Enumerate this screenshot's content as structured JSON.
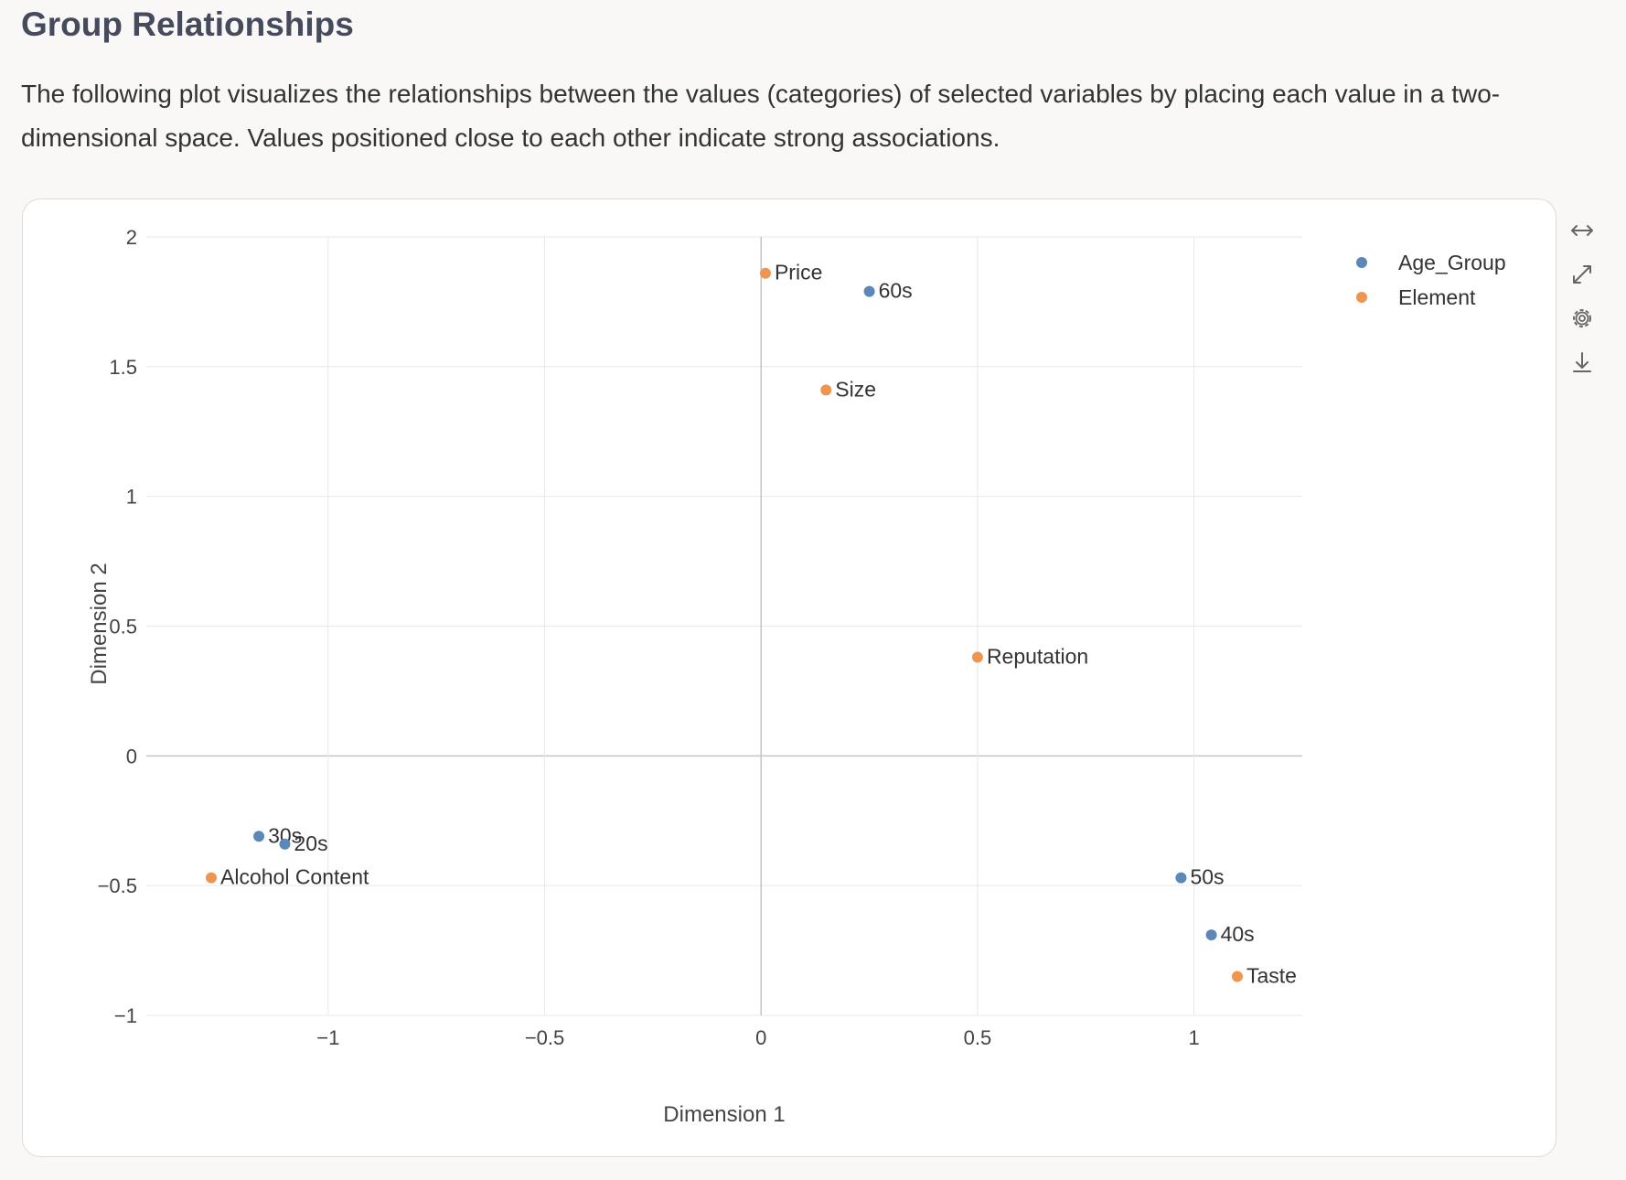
{
  "page": {
    "title": "Group Relationships",
    "description": "The following plot visualizes the relationships between the values (categories) of selected variables by placing each value in a two-dimensional space. Values positioned close to each other indicate strong associations."
  },
  "toolbar": {
    "icons": [
      "resize-horizontal-icon",
      "expand-icon",
      "settings-icon",
      "download-icon"
    ]
  },
  "colors": {
    "Age_Group": "#5b88b8",
    "Element": "#ee9650",
    "grid": "#e8e8e8",
    "zero_line": "#c4c4c4"
  },
  "chart_data": {
    "type": "scatter",
    "title": "",
    "xlabel": "Dimension 1",
    "ylabel": "Dimension 2",
    "xlim": [
      -1.42,
      1.25
    ],
    "ylim": [
      -1.0,
      2.0
    ],
    "xticks": [
      -1,
      -0.5,
      0,
      0.5,
      1
    ],
    "xtick_labels": [
      "−1",
      "−0.5",
      "0",
      "0.5",
      "1"
    ],
    "yticks": [
      -1,
      -0.5,
      0,
      0.5,
      1,
      1.5,
      2
    ],
    "ytick_labels": [
      "−1",
      "−0.5",
      "0",
      "0.5",
      "1",
      "1.5",
      "2"
    ],
    "grid": true,
    "legend_position": "top-right",
    "series": [
      {
        "name": "Age_Group",
        "points": [
          {
            "label": "60s",
            "x": 0.25,
            "y": 1.79
          },
          {
            "label": "30s",
            "x": -1.16,
            "y": -0.31
          },
          {
            "label": "20s",
            "x": -1.1,
            "y": -0.34
          },
          {
            "label": "50s",
            "x": 0.97,
            "y": -0.47
          },
          {
            "label": "40s",
            "x": 1.04,
            "y": -0.69
          }
        ]
      },
      {
        "name": "Element",
        "points": [
          {
            "label": "Price",
            "x": 0.01,
            "y": 1.86
          },
          {
            "label": "Size",
            "x": 0.15,
            "y": 1.41
          },
          {
            "label": "Reputation",
            "x": 0.5,
            "y": 0.38
          },
          {
            "label": "Alcohol Content",
            "x": -1.27,
            "y": -0.47
          },
          {
            "label": "Taste",
            "x": 1.1,
            "y": -0.85
          }
        ]
      }
    ]
  }
}
